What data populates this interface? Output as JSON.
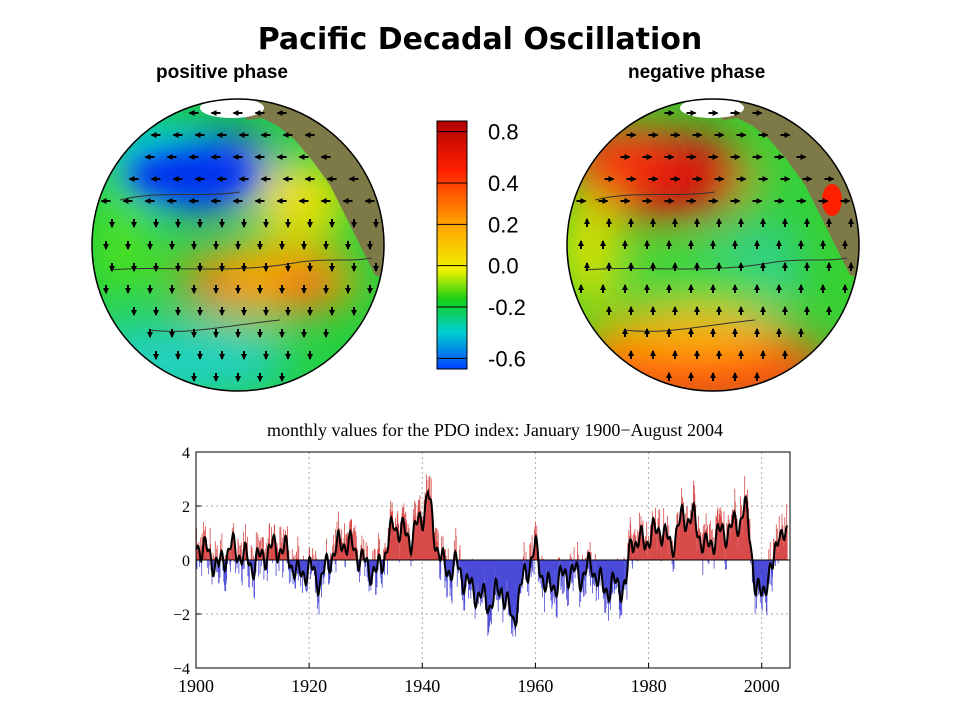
{
  "title": "Pacific Decadal Oscillation",
  "panels": {
    "positive": {
      "label": "positive phase"
    },
    "negative": {
      "label": "negative phase"
    }
  },
  "colorbar": {
    "ticks": [
      "0.8",
      "0.4",
      "0.2",
      "0.0",
      "-0.2",
      "-0.6"
    ],
    "colors": [
      "#b00000",
      "#ff2000",
      "#ff9a00",
      "#f2f200",
      "#16d016",
      "#00d0d0",
      "#0040ff"
    ]
  },
  "chart_data": {
    "type": "area",
    "title": "monthly values for the PDO index: January 1900−August 2004",
    "xlim": [
      1900,
      2005
    ],
    "ylim": [
      -4,
      4
    ],
    "xticks": [
      1900,
      1920,
      1940,
      1960,
      1980,
      2000
    ],
    "yticks": [
      4,
      2,
      0,
      -2,
      -4
    ],
    "ytick_labels": [
      "4",
      "2",
      "0",
      "−2",
      "−4"
    ],
    "grid": true,
    "positive_color": "#d84a4a",
    "negative_color": "#4a4ad8",
    "smoothed_color": "#000000",
    "x": [
      1900,
      1902,
      1904,
      1906,
      1908,
      1910,
      1912,
      1914,
      1916,
      1918,
      1920,
      1922,
      1924,
      1926,
      1928,
      1930,
      1932,
      1934,
      1935,
      1936,
      1938,
      1940,
      1941,
      1942,
      1944,
      1946,
      1948,
      1950,
      1952,
      1954,
      1956,
      1958,
      1960,
      1962,
      1964,
      1966,
      1968,
      1970,
      1972,
      1974,
      1976,
      1977,
      1978,
      1980,
      1982,
      1984,
      1986,
      1988,
      1990,
      1992,
      1994,
      1996,
      1997,
      1998,
      1999,
      2000,
      2001,
      2002,
      2003,
      2004
    ],
    "values": [
      0.6,
      0.3,
      -0.3,
      0.5,
      0.2,
      -0.2,
      0.2,
      0.5,
      0.3,
      -0.6,
      -0.3,
      -0.8,
      0.2,
      0.7,
      0.4,
      -0.2,
      -0.5,
      0.6,
      1.4,
      1.1,
      0.8,
      1.6,
      2.5,
      1.0,
      -0.4,
      -0.2,
      -0.9,
      -1.3,
      -1.6,
      -1.0,
      -2.3,
      -0.6,
      0.4,
      -1.1,
      -0.8,
      -0.4,
      -0.6,
      -0.2,
      -1.1,
      -0.9,
      -1.0,
      0.9,
      0.6,
      0.8,
      1.2,
      0.5,
      1.6,
      1.5,
      0.4,
      0.9,
      1.1,
      1.4,
      2.0,
      0.8,
      -1.2,
      -1.3,
      -0.6,
      -0.4,
      1.3,
      0.7
    ]
  }
}
